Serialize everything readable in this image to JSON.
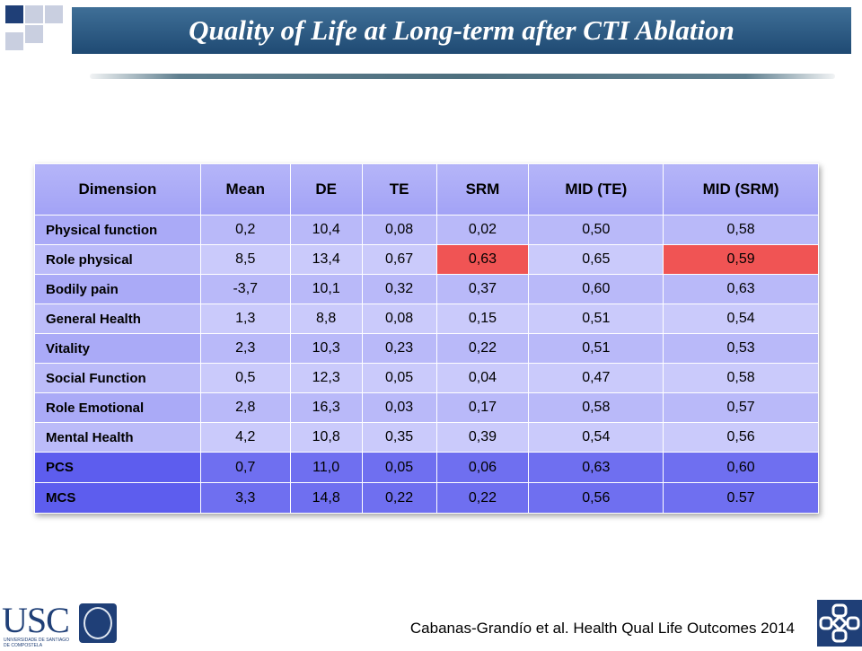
{
  "header": {
    "title": "Quality of Life at Long-term after CTI Ablation"
  },
  "table": {
    "columns": [
      "Dimension",
      "Mean",
      "DE",
      "TE",
      "SRM",
      "MID (TE)",
      "MID (SRM)"
    ],
    "rows": [
      {
        "dimension": "Physical function",
        "mean": "0,2",
        "de": "10,4",
        "te": "0,08",
        "srm": "0,02",
        "mid_te": "0,50",
        "mid_srm": "0,58"
      },
      {
        "dimension": "Role physical",
        "mean": "8,5",
        "de": "13,4",
        "te": "0,67",
        "srm": "0,63",
        "mid_te": "0,65",
        "mid_srm": "0,59"
      },
      {
        "dimension": "Bodily pain",
        "mean": "-3,7",
        "de": "10,1",
        "te": "0,32",
        "srm": "0,37",
        "mid_te": "0,60",
        "mid_srm": "0,63"
      },
      {
        "dimension": "General Health",
        "mean": "1,3",
        "de": "8,8",
        "te": "0,08",
        "srm": "0,15",
        "mid_te": "0,51",
        "mid_srm": "0,54"
      },
      {
        "dimension": "Vitality",
        "mean": "2,3",
        "de": "10,3",
        "te": "0,23",
        "srm": "0,22",
        "mid_te": "0,51",
        "mid_srm": "0,53"
      },
      {
        "dimension": "Social Function",
        "mean": "0,5",
        "de": "12,3",
        "te": "0,05",
        "srm": "0,04",
        "mid_te": "0,47",
        "mid_srm": "0,58"
      },
      {
        "dimension": "Role Emotional",
        "mean": "2,8",
        "de": "16,3",
        "te": "0,03",
        "srm": "0,17",
        "mid_te": "0,58",
        "mid_srm": "0,57"
      },
      {
        "dimension": "Mental Health",
        "mean": "4,2",
        "de": "10,8",
        "te": "0,35",
        "srm": "0,39",
        "mid_te": "0,54",
        "mid_srm": "0,56"
      },
      {
        "dimension": "PCS",
        "mean": "0,7",
        "de": "11,0",
        "te": "0,05",
        "srm": "0,06",
        "mid_te": "0,63",
        "mid_srm": "0,60"
      },
      {
        "dimension": "MCS",
        "mean": "3,3",
        "de": "14,8",
        "te": "0,22",
        "srm": "0,22",
        "mid_te": "0,56",
        "mid_srm": "0.57"
      }
    ],
    "highlight_color": "#f05454"
  },
  "footer": {
    "logo_text": "USC",
    "logo_subtext": "UNIVERSIDADE DE SANTIAGO DE COMPOSTELA",
    "citation": "Cabanas-Grandío et al. Health Qual Life Outcomes 2014"
  },
  "icons": [
    "usc-logo",
    "university-seal-icon",
    "cross-emblem-icon"
  ]
}
